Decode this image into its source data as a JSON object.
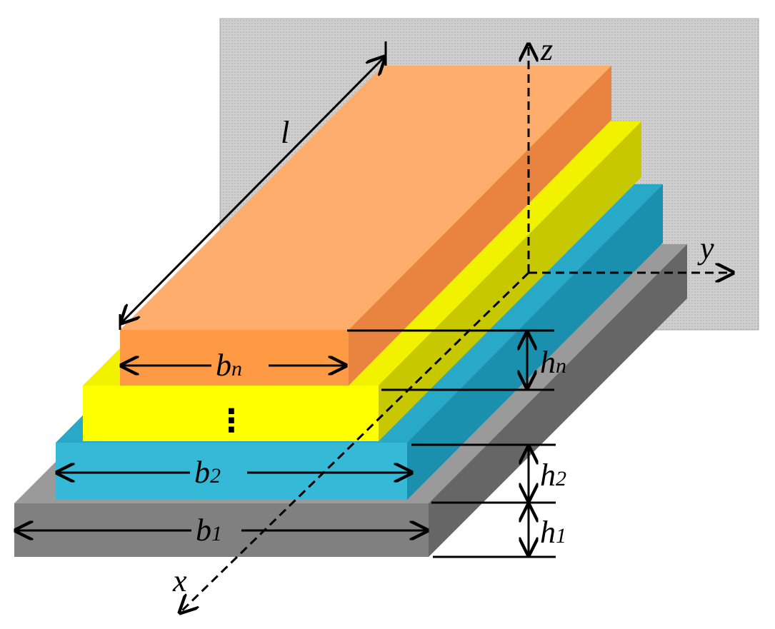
{
  "diagram": {
    "axes": {
      "x": "x",
      "y": "y",
      "z": "z"
    },
    "length_label": "l",
    "widths": [
      {
        "symbol": "b",
        "subscript": "n"
      },
      {
        "symbol": "b",
        "subscript": "2"
      },
      {
        "symbol": "b",
        "subscript": "1"
      }
    ],
    "heights": [
      {
        "symbol": "h",
        "subscript": "n"
      },
      {
        "symbol": "h",
        "subscript": "2"
      },
      {
        "symbol": "h",
        "subscript": "1"
      }
    ],
    "ellipsis": "⋮"
  },
  "colors": {
    "wall": "#c9c9c9",
    "base_front": "#808080",
    "base_top": "#9a9a9a",
    "base_side": "#666666",
    "layer2_front": "#36b9d6",
    "layer2_top": "#29a9c8",
    "layer2_side": "#1a8fae",
    "yellow_front": "#ffff00",
    "yellow_top": "#f2f200",
    "yellow_side": "#c8c800",
    "top_front": "#ff9a44",
    "top_top": "#ffad6c",
    "top_side": "#e8843f"
  }
}
